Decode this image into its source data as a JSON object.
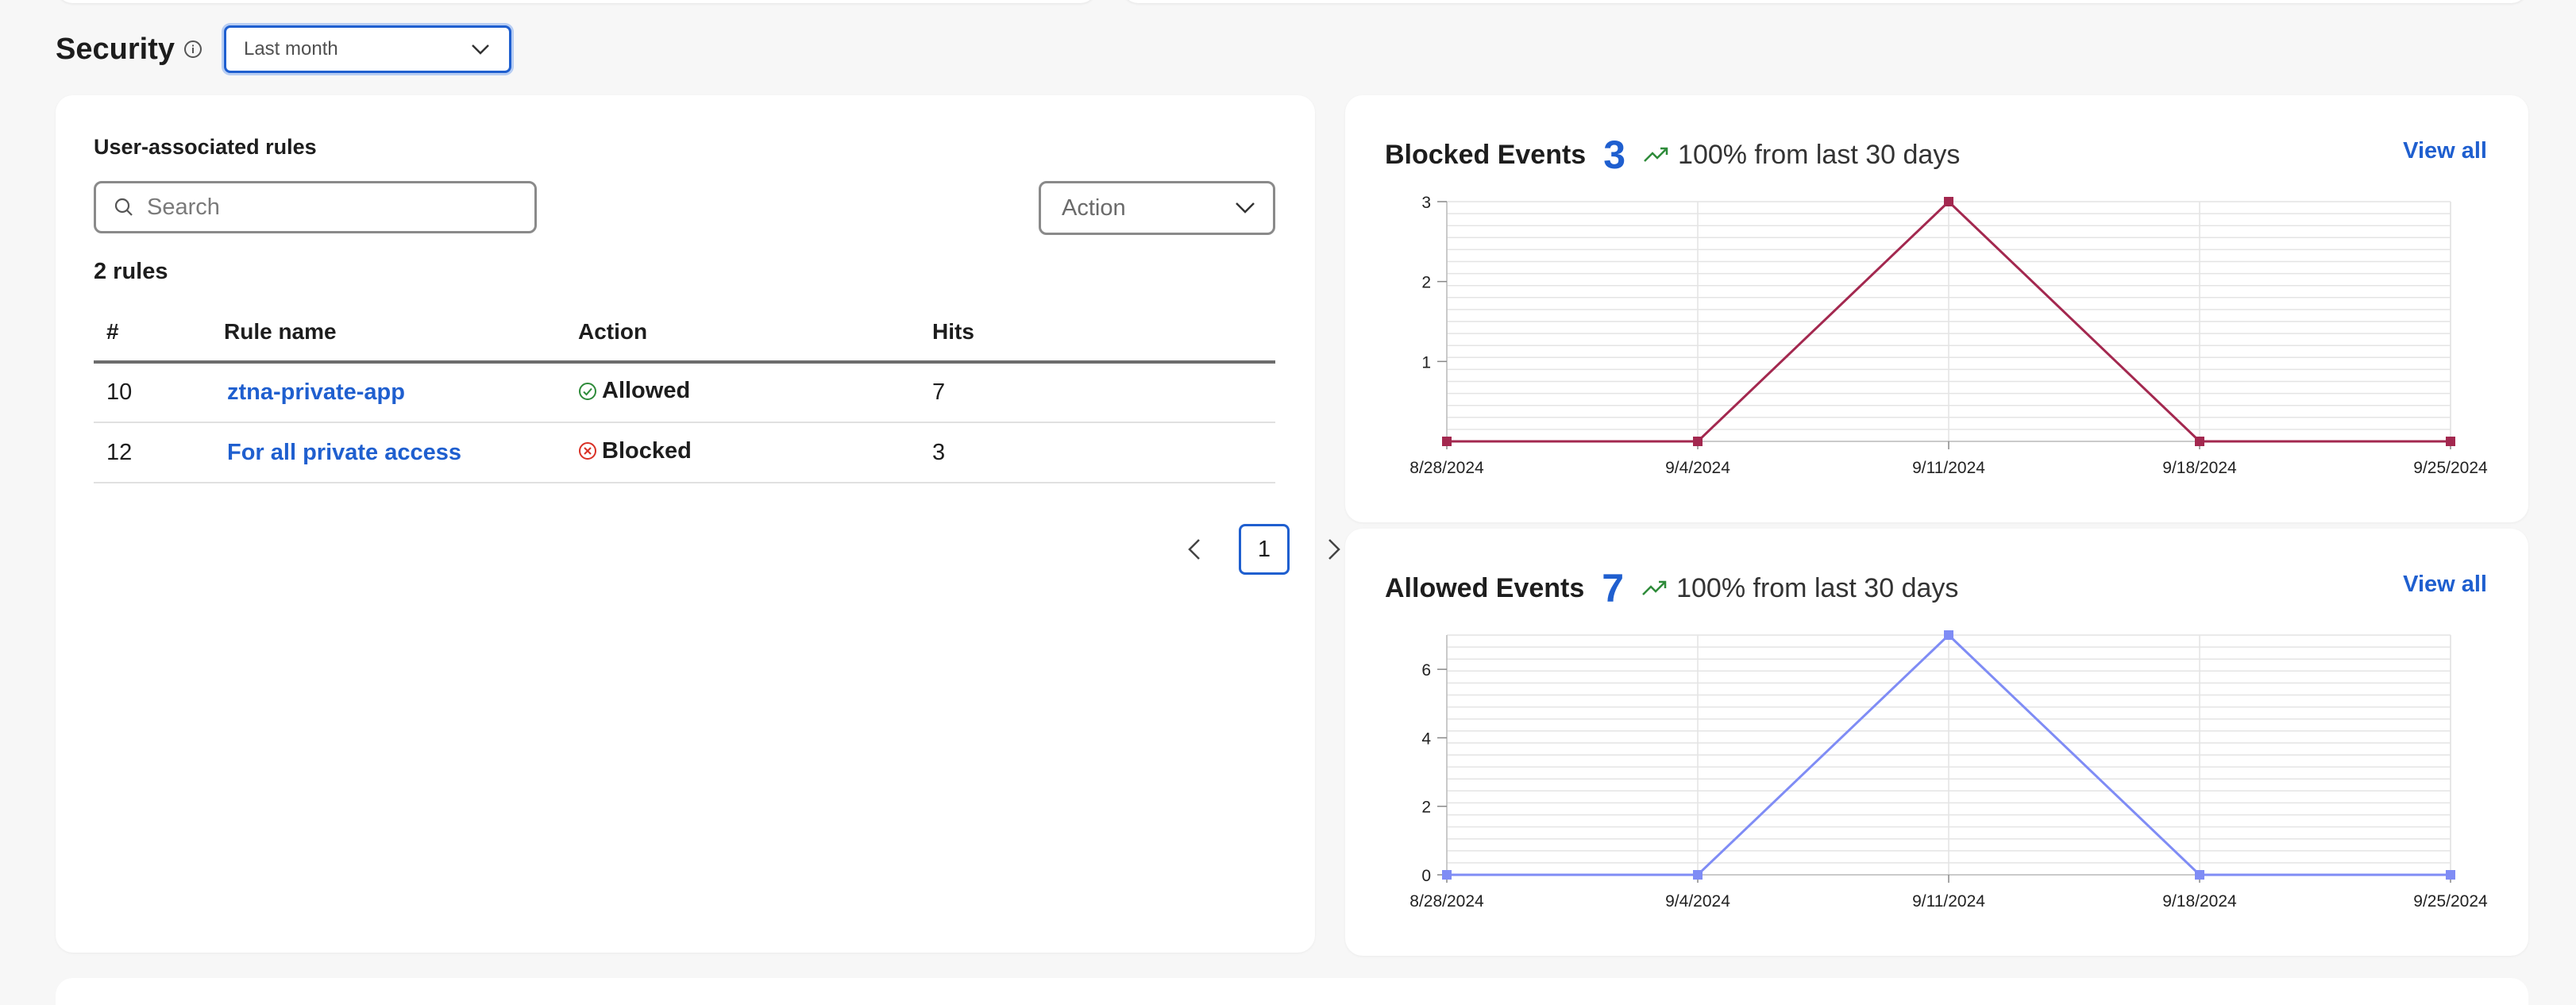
{
  "security": {
    "title": "Security",
    "range_value": "Last month"
  },
  "rules": {
    "title": "User-associated rules",
    "search_placeholder": "Search",
    "action_filter": "Action",
    "count_label": "2 rules",
    "columns": [
      "#",
      "Rule name",
      "Action",
      "Hits"
    ],
    "rows": [
      {
        "num": "10",
        "name": "ztna-private-app",
        "action": "Allowed",
        "hits": "7"
      },
      {
        "num": "12",
        "name": "For all private access",
        "action": "Blocked",
        "hits": "3"
      }
    ],
    "current_page": "1"
  },
  "blocked": {
    "title": "Blocked Events",
    "count": "3",
    "trend_text": "100% from last 30 days",
    "view_all": "View all"
  },
  "allowed": {
    "title": "Allowed Events",
    "count": "7",
    "trend_text": "100% from last 30 days",
    "view_all": "View all"
  },
  "colors": {
    "accent": "#1f5fcf",
    "blocked_line": "#a3284f",
    "allowed_line": "#7f8cf5",
    "allowed_status": "#2e8b3a",
    "blocked_status": "#d93025",
    "trend": "#2e8b3a"
  },
  "chart_data": [
    {
      "type": "line",
      "x": [
        "8/28/2024",
        "9/4/2024",
        "9/11/2024",
        "9/18/2024",
        "9/25/2024"
      ],
      "y_ticks": [
        1,
        2,
        3
      ],
      "ylim": [
        0,
        3
      ],
      "series": [
        {
          "values": [
            0,
            0,
            3,
            0,
            0
          ]
        }
      ],
      "grid": true
    },
    {
      "type": "line",
      "x": [
        "8/28/2024",
        "9/4/2024",
        "9/11/2024",
        "9/18/2024",
        "9/25/2024"
      ],
      "y_ticks": [
        0,
        2,
        4,
        6
      ],
      "ylim": [
        0,
        7
      ],
      "series": [
        {
          "values": [
            0,
            0,
            7,
            0,
            0
          ]
        }
      ],
      "grid": true
    }
  ]
}
